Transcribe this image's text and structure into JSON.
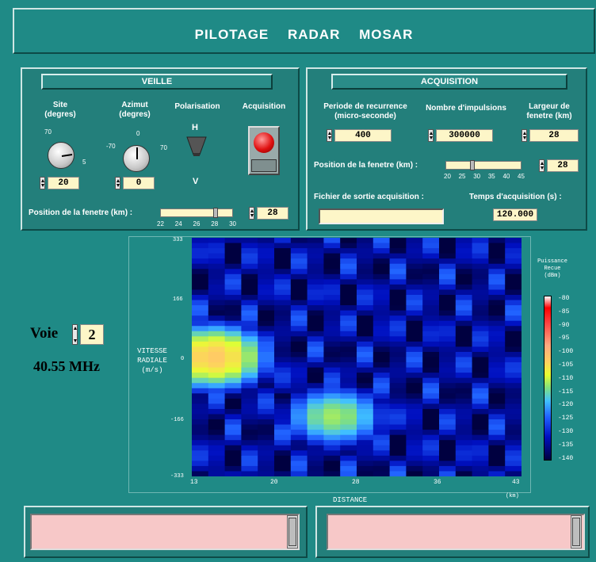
{
  "title": "PILOTAGE RADAR MOSAR",
  "veille": {
    "header": "VEILLE",
    "site_label": "Site\n(degres)",
    "azimut_label": "Azimut\n(degres)",
    "polarisation_label": "Polarisation",
    "acquisition_label": "Acquisition",
    "site_ticks": {
      "top": "70",
      "right": "5"
    },
    "azimut_ticks": {
      "left": "-70",
      "top": "0",
      "right": "70"
    },
    "pol_h": "H",
    "pol_v": "V",
    "site_value": "20",
    "azimut_value": "0",
    "position_label": "Position de la fenetre (km) :",
    "position_ticks": [
      "22",
      "24",
      "26",
      "28",
      "30"
    ],
    "position_slider_fraction": 0.75,
    "position_value": "28"
  },
  "acquisition": {
    "header": "ACQUISITION",
    "periode_label": "Periode de recurrence\n(micro-seconde)",
    "nombre_label": "Nombre d'impulsions",
    "largeur_label": "Largeur de\nfenetre (km)",
    "periode_value": "400",
    "nombre_value": "300000",
    "largeur_value": "28",
    "position_label": "Position de la fenetre (km) :",
    "position_ticks": [
      "20",
      "25",
      "30",
      "35",
      "40",
      "45"
    ],
    "position_slider_fraction": 0.32,
    "position_value": "28",
    "fichier_label": "Fichier de sortie acquisition :",
    "fichier_value": "",
    "temps_label": "Temps d'acquisition (s) :",
    "temps_value": "120.000"
  },
  "voie": {
    "label": "Voie",
    "value": "2",
    "frequency": "40.55 MHz"
  },
  "chart_data": {
    "type": "heatmap",
    "xlabel": "DISTANCE",
    "xunit": "(km)",
    "ylabel": "VITESSE\nRADIALE\n(m/s)",
    "x_ticks": [
      "13",
      "20",
      "28",
      "36",
      "43"
    ],
    "y_ticks": [
      "333",
      "166",
      "0",
      "-166",
      "-333"
    ],
    "xlim": [
      13,
      43
    ],
    "ylim": [
      -333,
      333
    ],
    "colorbar_title": "Puissance\nRecue\n(dBm)",
    "colorbar_ticks": [
      "-80",
      "-85",
      "-90",
      "-95",
      "-100",
      "-105",
      "-110",
      "-115",
      "-120",
      "-125",
      "-130",
      "-135",
      "-140"
    ],
    "clim": [
      -140,
      -80
    ],
    "features": [
      {
        "distance": 15,
        "velocity": 0,
        "power_dBm": -103
      },
      {
        "distance": 26,
        "velocity": -166,
        "power_dBm": -112
      }
    ]
  },
  "colors": {
    "background": "#1f8a86",
    "field": "#fdf6c8",
    "status_box": "#f7c8c8",
    "led": "#e01010"
  }
}
